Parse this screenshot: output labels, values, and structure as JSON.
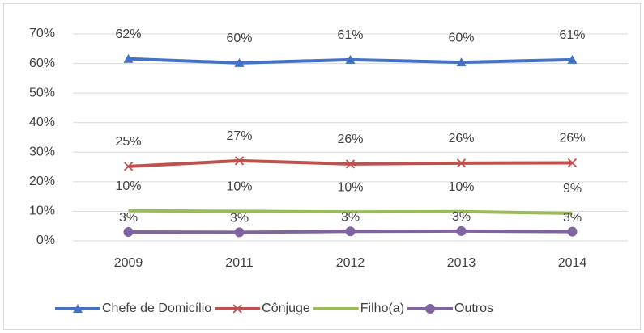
{
  "chart_data": {
    "type": "line",
    "categories": [
      "2009",
      "2011",
      "2012",
      "2013",
      "2014"
    ],
    "series": [
      {
        "name": "Chefe de Domicílio",
        "color": "#4472c4",
        "marker": "triangle",
        "values": [
          61.6,
          60.2,
          61.3,
          60.4,
          61.3
        ],
        "value_labels": [
          "62%",
          "60%",
          "61%",
          "60%",
          "61%"
        ]
      },
      {
        "name": "Cônjuge",
        "color": "#c0504d",
        "marker": "x",
        "values": [
          25.2,
          27.1,
          26.0,
          26.3,
          26.4
        ],
        "value_labels": [
          "25%",
          "27%",
          "26%",
          "26%",
          "26%"
        ]
      },
      {
        "name": "Filho(a)",
        "color": "#9bbb59",
        "marker": "none",
        "values": [
          10.2,
          10.0,
          9.8,
          9.9,
          9.3
        ],
        "value_labels": [
          "10%",
          "10%",
          "10%",
          "10%",
          "9%"
        ]
      },
      {
        "name": "Outros",
        "color": "#8064a2",
        "marker": "circle",
        "values": [
          3.0,
          2.9,
          3.2,
          3.3,
          3.1
        ],
        "value_labels": [
          "3%",
          "3%",
          "3%",
          "3%",
          "3%"
        ]
      }
    ],
    "ylim": [
      0,
      70
    ],
    "yticks": [
      {
        "value": 0,
        "label": "0%"
      },
      {
        "value": 10,
        "label": "10%"
      },
      {
        "value": 20,
        "label": "20%"
      },
      {
        "value": 30,
        "label": "30%"
      },
      {
        "value": 40,
        "label": "40%"
      },
      {
        "value": 50,
        "label": "50%"
      },
      {
        "value": 60,
        "label": "60%"
      },
      {
        "value": 70,
        "label": "70%"
      }
    ],
    "grid": true,
    "legend": "bottom"
  }
}
